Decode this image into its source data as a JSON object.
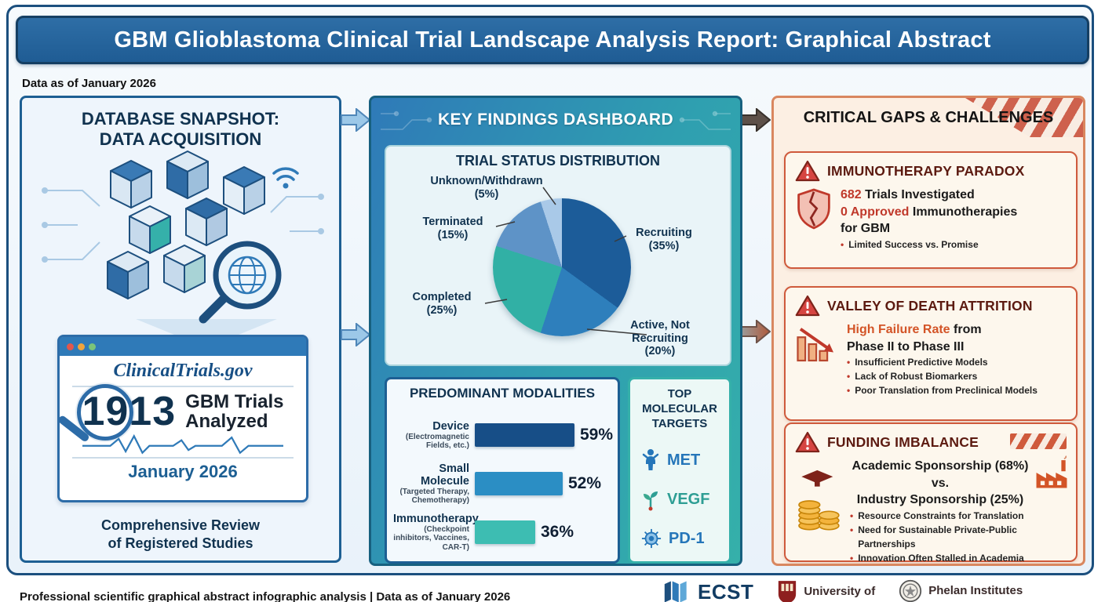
{
  "meta": {
    "title": "GBM Glioblastoma Clinical Trial Landscape Analysis Report: Graphical Abstract",
    "data_as_of": "Data as of January 2026",
    "footer": "Professional scientific graphical abstract infographic analysis | Data as of January 2026"
  },
  "colors": {
    "banner_blue": "#266397",
    "accent_teal": "#35b0aa",
    "alert_red": "#c0392b",
    "highlight_orange": "#d35427"
  },
  "left_panel": {
    "title_line1": "DATABASE SNAPSHOT:",
    "title_line2": "DATA ACQUISITION",
    "browser_title": "ClinicalTrials.gov",
    "trials_count": "1913",
    "trials_label_line1": "GBM Trials",
    "trials_label_line2": "Analyzed",
    "date": "January 2026",
    "caption_line1": "Comprehensive Review",
    "caption_line2": "of Registered Studies"
  },
  "dashboard": {
    "title": "KEY FINDINGS DASHBOARD",
    "pie_title": "TRIAL STATUS DISTRIBUTION",
    "modalities_title": "PREDOMINANT MODALITIES",
    "targets_title_line1": "TOP",
    "targets_title_line2": "MOLECULAR",
    "targets_title_line3": "TARGETS",
    "targets": [
      {
        "name": "MET",
        "icon": "receptor-person-icon",
        "color": "#2576b9"
      },
      {
        "name": "VEGF",
        "icon": "sprout-icon",
        "color": "#2e9e94"
      },
      {
        "name": "PD-1",
        "icon": "virus-icon",
        "color": "#2576b9"
      }
    ]
  },
  "chart_data": [
    {
      "type": "pie",
      "title": "TRIAL STATUS DISTRIBUTION",
      "labels": [
        "Recruiting",
        "Active, Not Recruiting",
        "Completed",
        "Terminated",
        "Unknown/Withdrawn"
      ],
      "values": [
        35,
        20,
        25,
        15,
        5
      ],
      "colors": [
        "#1c5c99",
        "#2e7fbc",
        "#31b0a5",
        "#5e93c7",
        "#a9c9e8"
      ],
      "legend_position": "around"
    },
    {
      "type": "bar",
      "orientation": "horizontal",
      "title": "PREDOMINANT MODALITIES",
      "categories": [
        "Device",
        "Small Molecule",
        "Immunotherapy"
      ],
      "category_sublabels": [
        "(Electromagnetic Fields, etc.)",
        "(Targeted Therapy, Chemotherapy)",
        "(Checkpoint inhibitors, Vaccines, CAR-T)"
      ],
      "values": [
        59,
        52,
        36
      ],
      "unit": "%",
      "colors": [
        "#174e87",
        "#2b8ec4",
        "#3dbdb2"
      ],
      "xlim": [
        0,
        100
      ]
    }
  ],
  "gaps": {
    "title": "CRITICAL GAPS & CHALLENGES",
    "cards": [
      {
        "heading": "IMMUNOTHERAPY PARADOX",
        "stat1_value": "682",
        "stat1_label": "Trials Investigated",
        "stat2_value": "0 Approved",
        "stat2_label": "Immunotherapies",
        "stat2_label2": "for GBM",
        "bullets": [
          "Limited Success vs. Promise"
        ]
      },
      {
        "heading": "VALLEY OF DEATH ATTRITION",
        "highlight": "High Failure Rate",
        "highlight_suffix": "from",
        "line2": "Phase II to Phase III",
        "bullets": [
          "Insufficient Predictive Models",
          "Lack of Robust Biomarkers",
          "Poor Translation from Preclinical Models"
        ]
      },
      {
        "heading": "FUNDING IMBALANCE",
        "line1": "Academic Sponsorship (68%)",
        "line2": "vs.",
        "line3": "Industry Sponsorship (25%)",
        "bullets": [
          "Resource Constraints for Translation",
          "Need for Sustainable Private-Public Partnerships",
          "Innovation Often Stalled in Academia"
        ]
      }
    ]
  },
  "footer_logos": [
    {
      "name": "ECST"
    },
    {
      "name": "University of"
    },
    {
      "name": "Phelan Institutes"
    }
  ]
}
